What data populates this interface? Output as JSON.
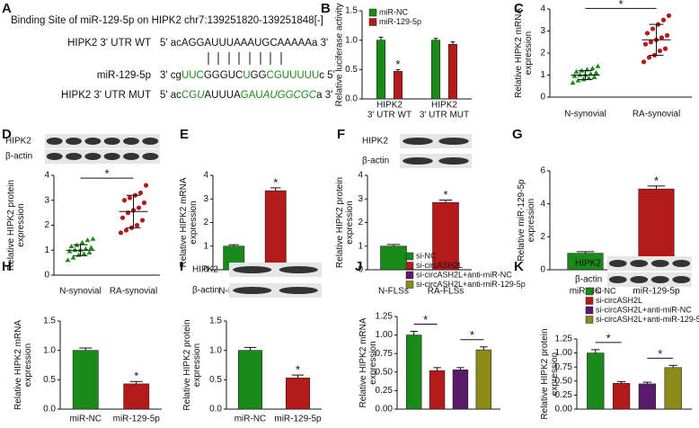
{
  "panel_a": {
    "label": "A",
    "title": "Binding Site of miR-129-5p on HIPK2 chr7:139251820-139251848[-]",
    "rows": [
      {
        "name": "HIPK2 3' UTR WT",
        "segments": [
          {
            "text": "5' acAGGAUUUAAAUGCAAAAAa 3'"
          }
        ]
      },
      {
        "name": "miR-129-5p",
        "segments": [
          {
            "text": "3' cg"
          },
          {
            "text": "UUC",
            "color": "#1a8a1a"
          },
          {
            "text": "GGGUC"
          },
          {
            "text": "U",
            "color": "#1a8a1a"
          },
          {
            "text": "GG"
          },
          {
            "text": "CGUUUUU",
            "color": "#1a8a1a"
          },
          {
            "text": "c 5'"
          }
        ]
      },
      {
        "name": "HIPK2 3' UTR MUT",
        "segments": [
          {
            "text": "5' ac"
          },
          {
            "text": "CG",
            "color": "#1a8a1a"
          },
          {
            "text": "U",
            "color": "#1a8a1a",
            "italic": true
          },
          {
            "text": "AUUUA"
          },
          {
            "text": "GAU",
            "color": "#1a8a1a"
          },
          {
            "text": "AUGGCGC",
            "color": "#1a8a1a",
            "italic": true
          },
          {
            "text": "a 3'"
          }
        ]
      }
    ]
  },
  "chart_data": [
    {
      "label": "B",
      "type": "bar",
      "categories": [
        [
          "HIPK2",
          "3' UTR WT"
        ],
        [
          "HIPK2",
          "3' UTR MUT"
        ]
      ],
      "series": [
        {
          "name": "miR-NC",
          "color": "#1a8a1a",
          "values": [
            1.0,
            1.0
          ],
          "errors": [
            0.05,
            0.03
          ]
        },
        {
          "name": "miR-129-5p",
          "color": "#b51a1a",
          "values": [
            0.47,
            0.93
          ],
          "errors": [
            0.03,
            0.04
          ]
        }
      ],
      "ylabel": [
        "Relative luciferase activity"
      ],
      "ylim": [
        0,
        1.5
      ],
      "yticks": [
        {
          "value": 0,
          "label": "0.0"
        },
        {
          "value": 0.5,
          "label": "0.5"
        },
        {
          "value": 1,
          "label": "1.0"
        },
        {
          "value": 1.5,
          "label": "1.5"
        }
      ],
      "legend": "top-left",
      "annotations": [
        {
          "text": "*",
          "series": 1,
          "category": 0
        }
      ]
    },
    {
      "label": "C",
      "type": "dot",
      "categories": [
        "N-synovial",
        "RA-synovial"
      ],
      "colors": [
        "#1a8a1a",
        "#b51a1a"
      ],
      "points": [
        [
          0.65,
          0.75,
          0.8,
          0.85,
          0.9,
          0.95,
          1.0,
          1.0,
          1.05,
          1.1,
          1.15,
          1.2,
          1.25,
          1.3,
          1.4
        ],
        [
          1.6,
          1.8,
          1.9,
          2.1,
          2.2,
          2.4,
          2.5,
          2.6,
          2.7,
          2.8,
          2.9,
          3.1,
          3.3,
          3.5,
          3.7
        ]
      ],
      "means": [
        1.0,
        2.6
      ],
      "errors": [
        0.2,
        0.7
      ],
      "ylabel": [
        "Relative HIPK2 mRNA",
        "expression"
      ],
      "ylim": [
        0,
        4
      ],
      "yticks": [
        0,
        1,
        2,
        3,
        4
      ],
      "annotations": [
        {
          "text": "*",
          "from": 0,
          "to": 1
        }
      ]
    },
    {
      "label": "D",
      "type": "dot",
      "blot": {
        "rows": [
          "HIPK2",
          "β-actin"
        ]
      },
      "categories": [
        "N-synovial",
        "RA-synovial"
      ],
      "colors": [
        "#1a8a1a",
        "#b51a1a"
      ],
      "points": [
        [
          0.6,
          0.7,
          0.8,
          0.85,
          0.9,
          0.95,
          1.0,
          1.0,
          1.05,
          1.1,
          1.15,
          1.2,
          1.3,
          1.4,
          1.45
        ],
        [
          1.7,
          1.8,
          1.9,
          2.0,
          2.2,
          2.3,
          2.5,
          2.6,
          2.7,
          2.9,
          3.0,
          3.1,
          3.2,
          3.3,
          3.6
        ]
      ],
      "means": [
        1.0,
        2.55
      ],
      "errors": [
        0.22,
        0.65
      ],
      "ylabel": [
        "Relative HIPK2 protein",
        "expression"
      ],
      "ylim": [
        0,
        4
      ],
      "yticks": [
        0,
        1,
        2,
        3,
        4
      ],
      "annotations": [
        {
          "text": "*",
          "from": 0,
          "to": 1
        }
      ]
    },
    {
      "label": "E",
      "type": "bar",
      "categories": [
        "N-FLSs",
        "RA-FLSs"
      ],
      "colors": [
        "#1a8a1a",
        "#b51a1a"
      ],
      "values": [
        1.0,
        3.35
      ],
      "errors": [
        0.06,
        0.12
      ],
      "ylabel": [
        "Relative HIPK2 mRNA",
        "expression"
      ],
      "ylim": [
        0,
        4
      ],
      "yticks": [
        0,
        1,
        2,
        3,
        4
      ],
      "annotations": [
        {
          "text": "*",
          "category": 1
        }
      ]
    },
    {
      "label": "F",
      "type": "bar",
      "blot": {
        "rows": [
          "HIPK2",
          "β-actin"
        ]
      },
      "categories": [
        "N-FLSs",
        "RA-FLSs"
      ],
      "colors": [
        "#1a8a1a",
        "#b51a1a"
      ],
      "values": [
        1.0,
        2.85
      ],
      "errors": [
        0.07,
        0.1
      ],
      "ylabel": [
        "Relative HIPK2 protein",
        "expression"
      ],
      "ylim": [
        0,
        4
      ],
      "yticks": [
        0,
        1,
        2,
        3,
        4
      ],
      "annotations": [
        {
          "text": "*",
          "category": 1
        }
      ]
    },
    {
      "label": "G",
      "type": "bar",
      "categories": [
        "miR-NC",
        "miR-129-5p"
      ],
      "colors": [
        "#1a8a1a",
        "#b51a1a"
      ],
      "values": [
        1.0,
        4.9
      ],
      "errors": [
        0.1,
        0.18
      ],
      "ylabel": [
        "Relative miR-129-5p",
        "expression"
      ],
      "ylim": [
        0,
        6
      ],
      "yticks": [
        0,
        2,
        4,
        6
      ],
      "annotations": [
        {
          "text": "*",
          "category": 1
        }
      ]
    },
    {
      "label": "H",
      "type": "bar",
      "categories": [
        "miR-NC",
        "miR-129-5p"
      ],
      "colors": [
        "#1a8a1a",
        "#b51a1a"
      ],
      "values": [
        1.0,
        0.43
      ],
      "errors": [
        0.04,
        0.04
      ],
      "ylabel": [
        "Relative HIPK2 mRNA",
        "expression"
      ],
      "ylim": [
        0,
        1.5
      ],
      "yticks": [
        {
          "value": 0,
          "label": "0.0"
        },
        {
          "value": 0.5,
          "label": "0.5"
        },
        {
          "value": 1,
          "label": "1.0"
        },
        {
          "value": 1.5,
          "label": "1.5"
        }
      ],
      "annotations": [
        {
          "text": "*",
          "category": 1
        }
      ]
    },
    {
      "label": "I",
      "type": "bar",
      "blot": {
        "rows": [
          "HIPK2",
          "β-actin"
        ]
      },
      "categories": [
        "miR-NC",
        "miR-129-5p"
      ],
      "colors": [
        "#1a8a1a",
        "#b51a1a"
      ],
      "values": [
        1.0,
        0.53
      ],
      "errors": [
        0.05,
        0.05
      ],
      "ylabel": [
        "Relative HIPK2 protein",
        "expression"
      ],
      "ylim": [
        0,
        1.5
      ],
      "yticks": [
        {
          "value": 0,
          "label": "0.0"
        },
        {
          "value": 0.5,
          "label": "0.5"
        },
        {
          "value": 1,
          "label": "1.0"
        },
        {
          "value": 1.5,
          "label": "1.5"
        }
      ],
      "annotations": [
        {
          "text": "*",
          "category": 1
        }
      ]
    },
    {
      "label": "J",
      "type": "bar",
      "categories": [
        null
      ],
      "series": [
        {
          "name": "si-NC",
          "color": "#1a8a1a",
          "values": [
            1.0
          ],
          "errors": [
            0.05
          ]
        },
        {
          "name": "si-circASH2L",
          "color": "#b51a1a",
          "values": [
            0.52
          ],
          "errors": [
            0.04
          ]
        },
        {
          "name": "si-circASH2L+anti-miR-NC",
          "color": "#5a1a6a",
          "values": [
            0.53
          ],
          "errors": [
            0.03
          ]
        },
        {
          "name": "si-circASH2L+anti-miR-129-5p",
          "color": "#8b8b1a",
          "values": [
            0.8
          ],
          "errors": [
            0.04
          ]
        }
      ],
      "ylabel": [
        "Relative HIPK2 mRNA",
        "expression"
      ],
      "ylim": [
        0,
        1.25
      ],
      "yticks": [
        {
          "value": 0,
          "label": "0.00"
        },
        {
          "value": 0.25,
          "label": "0.25"
        },
        {
          "value": 0.5,
          "label": "0.50"
        },
        {
          "value": 0.75,
          "label": "0.75"
        },
        {
          "value": 1,
          "label": "1.00"
        },
        {
          "value": 1.25,
          "label": "1.25"
        }
      ],
      "legend": "top",
      "annotations": [
        {
          "text": "*",
          "from": 0,
          "to": 1
        },
        {
          "text": "*",
          "from": 2,
          "to": 3
        }
      ]
    },
    {
      "label": "K",
      "type": "bar",
      "blot": {
        "rows": [
          "HIPK2",
          "β-actin"
        ]
      },
      "categories": [
        null
      ],
      "series": [
        {
          "name": "si-NC",
          "color": "#1a8a1a",
          "values": [
            1.0
          ],
          "errors": [
            0.06
          ]
        },
        {
          "name": "si-circASH2L",
          "color": "#b51a1a",
          "values": [
            0.46
          ],
          "errors": [
            0.03
          ]
        },
        {
          "name": "si-circASH2L+anti-miR-NC",
          "color": "#5a1a6a",
          "values": [
            0.45
          ],
          "errors": [
            0.03
          ]
        },
        {
          "name": "si-circASH2L+anti-miR-129-5p",
          "color": "#8b8b1a",
          "values": [
            0.74
          ],
          "errors": [
            0.04
          ]
        }
      ],
      "ylabel": [
        "Relative HIPK2 protein",
        "expression"
      ],
      "ylim": [
        0,
        1.25
      ],
      "yticks": [
        {
          "value": 0,
          "label": "0.00"
        },
        {
          "value": 0.25,
          "label": "0.25"
        },
        {
          "value": 0.5,
          "label": "0.50"
        },
        {
          "value": 0.75,
          "label": "0.75"
        },
        {
          "value": 1,
          "label": "1.00"
        },
        {
          "value": 1.25,
          "label": "1.25"
        }
      ],
      "legend": "top",
      "annotations": [
        {
          "text": "*",
          "from": 0,
          "to": 1
        },
        {
          "text": "*",
          "from": 2,
          "to": 3
        }
      ]
    }
  ]
}
